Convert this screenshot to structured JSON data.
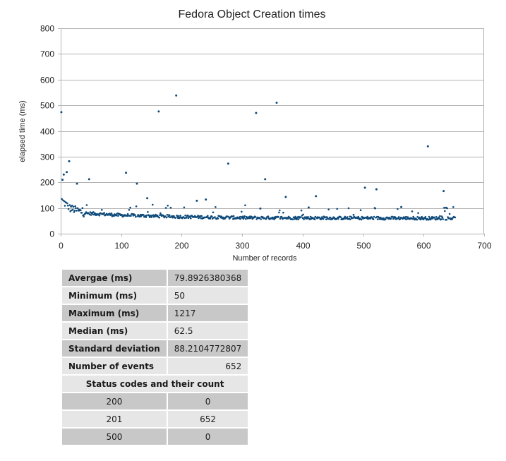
{
  "chart_data": {
    "type": "scatter",
    "title": "Fedora Object Creation times",
    "xlabel": "Number of records",
    "ylabel": "elapsed time (ms)",
    "xlim": [
      0,
      700
    ],
    "ylim": [
      0,
      800
    ],
    "xticks": [
      0,
      100,
      200,
      300,
      400,
      500,
      600,
      700
    ],
    "yticks": [
      0,
      100,
      200,
      300,
      400,
      500,
      600,
      700,
      800
    ],
    "grid": true,
    "marker_color": "#0e4a7a",
    "outliers": [
      {
        "x": 1,
        "y": 473
      },
      {
        "x": 3,
        "y": 210
      },
      {
        "x": 5,
        "y": 230
      },
      {
        "x": 10,
        "y": 240
      },
      {
        "x": 14,
        "y": 282
      },
      {
        "x": 27,
        "y": 195
      },
      {
        "x": 47,
        "y": 212
      },
      {
        "x": 108,
        "y": 237
      },
      {
        "x": 126,
        "y": 195
      },
      {
        "x": 143,
        "y": 138
      },
      {
        "x": 162,
        "y": 476
      },
      {
        "x": 191,
        "y": 538
      },
      {
        "x": 225,
        "y": 128
      },
      {
        "x": 240,
        "y": 133
      },
      {
        "x": 277,
        "y": 273
      },
      {
        "x": 323,
        "y": 470
      },
      {
        "x": 330,
        "y": 98
      },
      {
        "x": 338,
        "y": 212
      },
      {
        "x": 357,
        "y": 510
      },
      {
        "x": 372,
        "y": 143
      },
      {
        "x": 410,
        "y": 102
      },
      {
        "x": 422,
        "y": 146
      },
      {
        "x": 503,
        "y": 179
      },
      {
        "x": 522,
        "y": 173
      },
      {
        "x": 563,
        "y": 104
      },
      {
        "x": 607,
        "y": 340
      },
      {
        "x": 633,
        "y": 166
      }
    ],
    "baseline": {
      "count": 652,
      "segments": [
        {
          "x": 0,
          "y": 135
        },
        {
          "x": 15,
          "y": 100
        },
        {
          "x": 40,
          "y": 80
        },
        {
          "x": 100,
          "y": 72
        },
        {
          "x": 200,
          "y": 66
        },
        {
          "x": 300,
          "y": 62
        },
        {
          "x": 652,
          "y": 60
        }
      ]
    }
  },
  "stats_table": {
    "rows": [
      {
        "label": "Avergae (ms)",
        "value": "79.8926380368"
      },
      {
        "label": "Minimum (ms)",
        "value": "50"
      },
      {
        "label": "Maximum (ms)",
        "value": "1217"
      },
      {
        "label": "Median (ms)",
        "value": "62.5"
      },
      {
        "label": "Standard deviation",
        "value": "88.2104772807"
      },
      {
        "label": "Number of events",
        "value": "652"
      }
    ],
    "status_header": "Status codes and their count",
    "status_rows": [
      {
        "code": "200",
        "count": "0"
      },
      {
        "code": "201",
        "count": "652"
      },
      {
        "code": "500",
        "count": "0"
      }
    ]
  }
}
